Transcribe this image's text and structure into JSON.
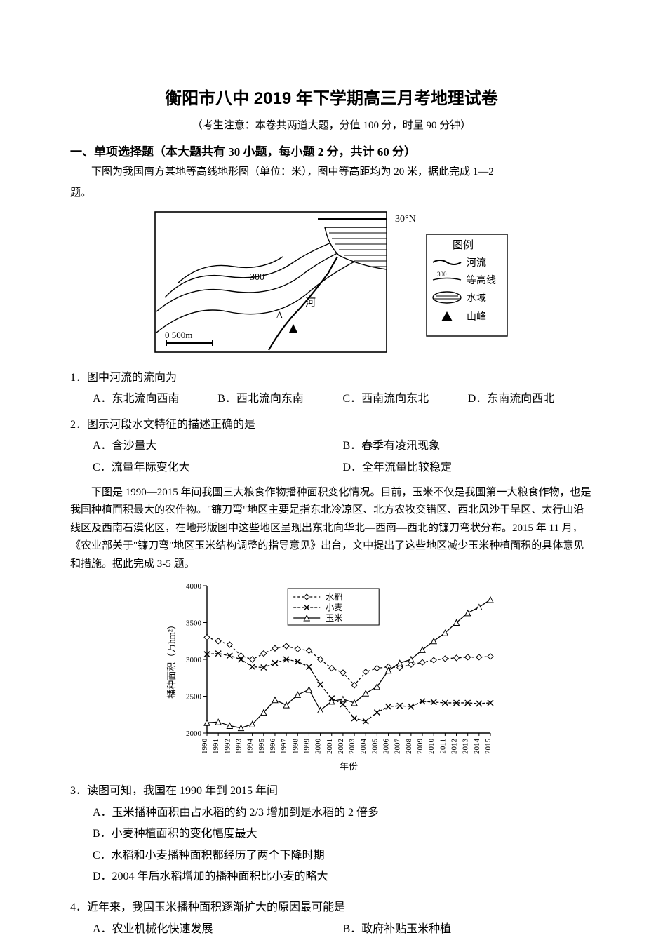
{
  "header": {
    "title": "衡阳市八中 2019 年下学期高三月考地理试卷",
    "subtitle": "（考生注意：本卷共两道大题，分值 100 分，时量 90 分钟）"
  },
  "section1": {
    "heading": "一、单项选择题（本大题共有 30 小题，每小题 2 分，共计 60 分）",
    "intro1a": "下图为我国南方某地等高线地形图（单位：米），图中等高距均为 20 米，据此完成 1—2",
    "intro1b": "题。",
    "intro2": "下图是 1990—2015 年间我国三大粮食作物播种面积变化情况。目前，玉米不仅是我国第一大粮食作物，也是我国种植面积最大的农作物。\"镰刀弯\"地区主要是指东北冷凉区、北方农牧交错区、西北风沙干旱区、太行山沿线区及西南石漠化区，在地形版图中这些地区呈现出东北向华北—西南—西北的镰刀弯状分布。2015 年 11 月，《农业部关于\"镰刀弯\"地区玉米结构调整的指导意见》出台，文中提出了这些地区减少玉米种植面积的具体意见和措施。据此完成 3-5 题。"
  },
  "map_figure": {
    "latitude_label": "30°N",
    "legend_title": "图例",
    "legend_items": [
      "河流",
      "等高线",
      "水域",
      "山峰"
    ],
    "contour_label_sample": "300",
    "contour_label_300_2": "300",
    "scale_label": "0    500m",
    "point_A": "A",
    "river_label": "河"
  },
  "chart": {
    "type": "line",
    "title": "",
    "xlabel": "年份",
    "ylabel": "播种面积（万hm²）",
    "ylim": [
      2000,
      4000
    ],
    "yticks": [
      2000,
      2500,
      3000,
      3500,
      4000
    ],
    "xticks": [
      "1990",
      "1991",
      "1992",
      "1993",
      "1994",
      "1995",
      "1996",
      "1997",
      "1998",
      "1999",
      "2000",
      "2001",
      "2002",
      "2003",
      "2004",
      "2005",
      "2006",
      "2007",
      "2008",
      "2009",
      "2010",
      "2011",
      "2012",
      "2013",
      "2014",
      "2015"
    ],
    "series": [
      {
        "name": "水稻",
        "marker": "diamond",
        "dash": "3,3",
        "color": "#000000",
        "values": [
          3300,
          3250,
          3200,
          3050,
          3000,
          3080,
          3150,
          3180,
          3140,
          3120,
          3000,
          2880,
          2820,
          2650,
          2830,
          2880,
          2900,
          2890,
          2930,
          2960,
          2990,
          3010,
          3020,
          3030,
          3030,
          3040
        ]
      },
      {
        "name": "小麦",
        "marker": "x",
        "dash": "4,2",
        "color": "#000000",
        "values": [
          3070,
          3080,
          3050,
          3000,
          2900,
          2890,
          2950,
          3000,
          2970,
          2900,
          2660,
          2470,
          2390,
          2200,
          2160,
          2280,
          2360,
          2370,
          2360,
          2430,
          2420,
          2410,
          2410,
          2410,
          2400,
          2410
        ]
      },
      {
        "name": "玉米",
        "marker": "triangle",
        "dash": "",
        "color": "#000000",
        "values": [
          2140,
          2150,
          2100,
          2070,
          2120,
          2280,
          2450,
          2380,
          2520,
          2590,
          2310,
          2430,
          2460,
          2410,
          2540,
          2630,
          2850,
          2950,
          3000,
          3130,
          3250,
          3360,
          3500,
          3630,
          3710,
          3810
        ]
      }
    ],
    "legend_pos": "top-center",
    "background_color": "#ffffff",
    "axis_fontsize": 11,
    "label_fontsize": 13
  },
  "questions": {
    "q1": {
      "stem": "1．图中河流的流向为",
      "A": "A．东北流向西南",
      "B": "B．西北流向东南",
      "C": "C．西南流向东北",
      "D": "D．东南流向西北"
    },
    "q2": {
      "stem": "2．图示河段水文特征的描述正确的是",
      "A": "A．含沙量大",
      "B": "B．春季有凌汛现象",
      "C": "C．流量年际变化大",
      "D": "D．全年流量比较稳定"
    },
    "q3": {
      "stem": "3．读图可知，我国在 1990 年到 2015 年间",
      "A": "A．玉米播种面积由占水稻的约 2/3 增加到是水稻的 2 倍多",
      "B": "B．小麦种植面积的变化幅度最大",
      "C": "C．水稻和小麦播种面积都经历了两个下降时期",
      "D": "D．2004 年后水稻增加的播种面积比小麦的略大"
    },
    "q4": {
      "stem": "4．近年来，我国玉米播种面积逐渐扩大的原因最可能是",
      "A": "A．农业机械化快速发展",
      "B": "B．政府补贴玉米种植"
    }
  }
}
